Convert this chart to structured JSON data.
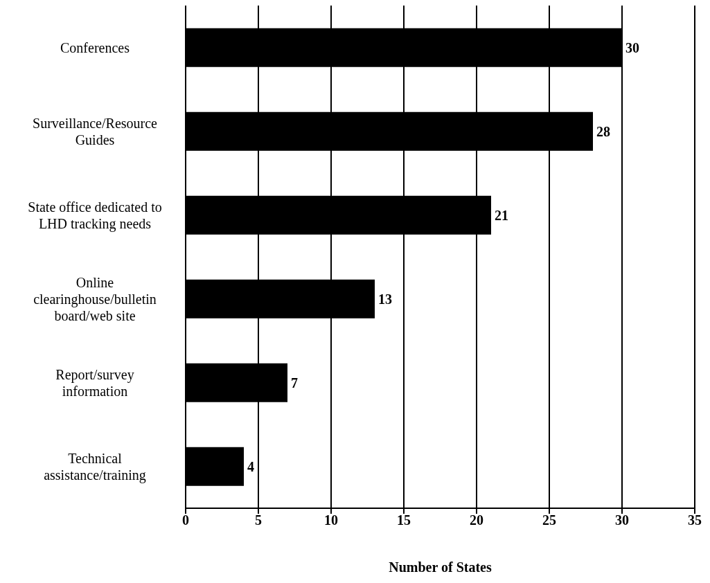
{
  "chart_data": {
    "type": "bar",
    "orientation": "horizontal",
    "xlabel": "Number of States",
    "categories": [
      "Conferences",
      "Surveillance/Resource Guides",
      "State office dedicated to LHD tracking needs",
      "Online clearinghouse/bulletin board/web site",
      "Report/survey information",
      "Technical assistance/training"
    ],
    "values": [
      30,
      28,
      21,
      13,
      7,
      4
    ],
    "color": "#000000",
    "xlim": [
      0,
      35
    ],
    "xticks": [
      0,
      5,
      10,
      15,
      20,
      25,
      30,
      35
    ],
    "grid": "x",
    "data_labels": true
  }
}
